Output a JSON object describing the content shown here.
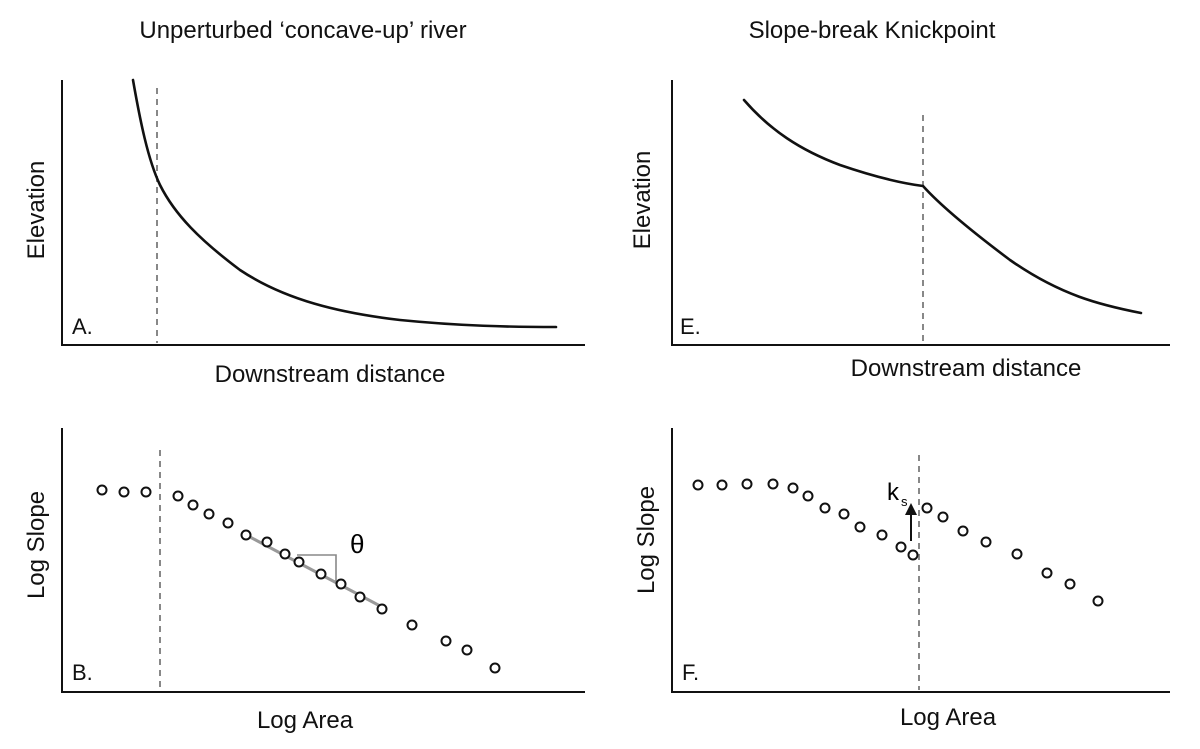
{
  "titles": {
    "left": "Unperturbed ‘concave-up’ river",
    "right": "Slope-break Knickpoint"
  },
  "panels": {
    "A": {
      "letter": "A.",
      "xlabel": "Downstream distance",
      "ylabel": "Elevation"
    },
    "E": {
      "letter": "E.",
      "xlabel": "Downstream distance",
      "ylabel": "Elevation"
    },
    "B": {
      "letter": "B.",
      "xlabel": "Log Area",
      "ylabel": "Log Slope",
      "annotation": "θ"
    },
    "F": {
      "letter": "F.",
      "xlabel": "Log Area",
      "ylabel": "Log Slope",
      "annotation_main": "k",
      "annotation_sub": "s"
    }
  },
  "colors": {
    "ink": "#111111",
    "guide": "#888888",
    "fit": "#999999"
  }
}
